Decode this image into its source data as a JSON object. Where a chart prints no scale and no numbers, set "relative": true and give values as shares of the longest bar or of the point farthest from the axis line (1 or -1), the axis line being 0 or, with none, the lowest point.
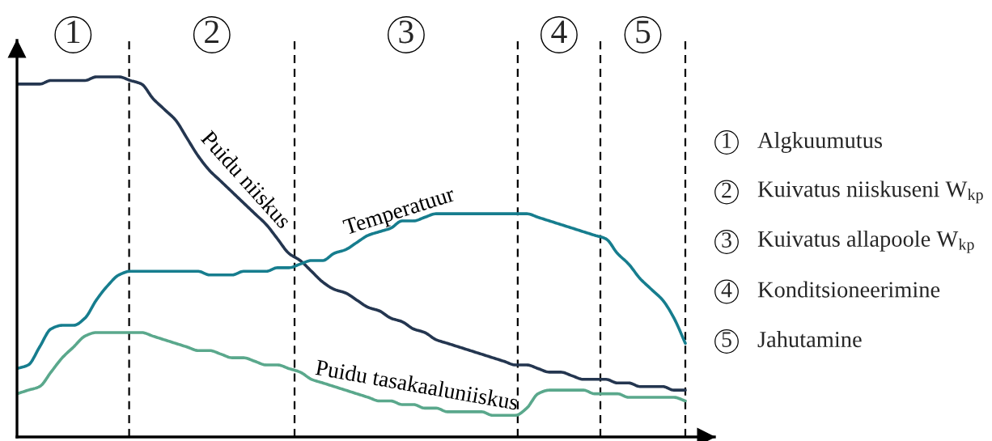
{
  "chart_data": {
    "type": "line",
    "relative": true,
    "categories": [
      null,
      null,
      null,
      null,
      null,
      null,
      null,
      null,
      null,
      null,
      null,
      null,
      null,
      null,
      null,
      null,
      null,
      null,
      null,
      null,
      null,
      null,
      null,
      null,
      null,
      null,
      null,
      null,
      null,
      null,
      null,
      null,
      null,
      null,
      null,
      null,
      null,
      null,
      null,
      null,
      null,
      null,
      null,
      null,
      null,
      null,
      null,
      null,
      null,
      null,
      null,
      null,
      null,
      null,
      null,
      null,
      null,
      null,
      null,
      null
    ],
    "series": [
      {
        "name": "Puidu niiskus",
        "color": "#243650",
        "values": [
          0.98,
          0.98,
          0.98,
          0.99,
          0.99,
          0.99,
          0.99,
          1.0,
          1.0,
          1.0,
          0.99,
          0.98,
          0.94,
          0.91,
          0.88,
          0.83,
          0.78,
          0.74,
          0.71,
          0.68,
          0.65,
          0.62,
          0.59,
          0.55,
          0.51,
          0.49,
          0.46,
          0.43,
          0.41,
          0.4,
          0.38,
          0.36,
          0.35,
          0.33,
          0.32,
          0.3,
          0.29,
          0.27,
          0.26,
          0.25,
          0.24,
          0.23,
          0.22,
          0.21,
          0.2,
          0.2,
          0.19,
          0.18,
          0.18,
          0.17,
          0.16,
          0.16,
          0.16,
          0.15,
          0.15,
          0.14,
          0.14,
          0.14,
          0.13,
          0.13
        ]
      },
      {
        "name": "Temperatuur",
        "color": "#167d8e",
        "values": [
          0.19,
          0.2,
          0.25,
          0.3,
          0.31,
          0.31,
          0.33,
          0.38,
          0.42,
          0.45,
          0.46,
          0.46,
          0.46,
          0.46,
          0.46,
          0.46,
          0.46,
          0.45,
          0.45,
          0.45,
          0.46,
          0.46,
          0.46,
          0.47,
          0.47,
          0.48,
          0.49,
          0.49,
          0.51,
          0.52,
          0.54,
          0.56,
          0.57,
          0.58,
          0.6,
          0.6,
          0.61,
          0.62,
          0.62,
          0.62,
          0.62,
          0.62,
          0.62,
          0.62,
          0.62,
          0.62,
          0.61,
          0.6,
          0.59,
          0.58,
          0.57,
          0.56,
          0.55,
          0.51,
          0.48,
          0.44,
          0.41,
          0.38,
          0.33,
          0.26
        ]
      },
      {
        "name": "Puidu tasakaaluniiskus",
        "color": "#5aa88c",
        "values": [
          0.12,
          0.13,
          0.14,
          0.18,
          0.22,
          0.25,
          0.28,
          0.29,
          0.29,
          0.29,
          0.29,
          0.29,
          0.28,
          0.27,
          0.26,
          0.25,
          0.24,
          0.24,
          0.23,
          0.22,
          0.22,
          0.21,
          0.2,
          0.2,
          0.19,
          0.18,
          0.16,
          0.15,
          0.14,
          0.13,
          0.12,
          0.11,
          0.1,
          0.1,
          0.09,
          0.09,
          0.08,
          0.08,
          0.07,
          0.07,
          0.07,
          0.07,
          0.06,
          0.06,
          0.06,
          0.08,
          0.12,
          0.13,
          0.13,
          0.13,
          0.13,
          0.12,
          0.12,
          0.12,
          0.11,
          0.11,
          0.11,
          0.11,
          0.11,
          0.1
        ]
      }
    ],
    "annotations": [
      "1",
      "2",
      "3",
      "4",
      "5",
      "Algkuumutus",
      "Kuivatus niiskuseni W$_{kp}$",
      "Kuivatus allapoole W$_{kp}$",
      "Konditsioneerimine",
      "Jahutamine"
    ],
    "line_style": "solid",
    "grid": "x",
    "legend": false
  }
}
